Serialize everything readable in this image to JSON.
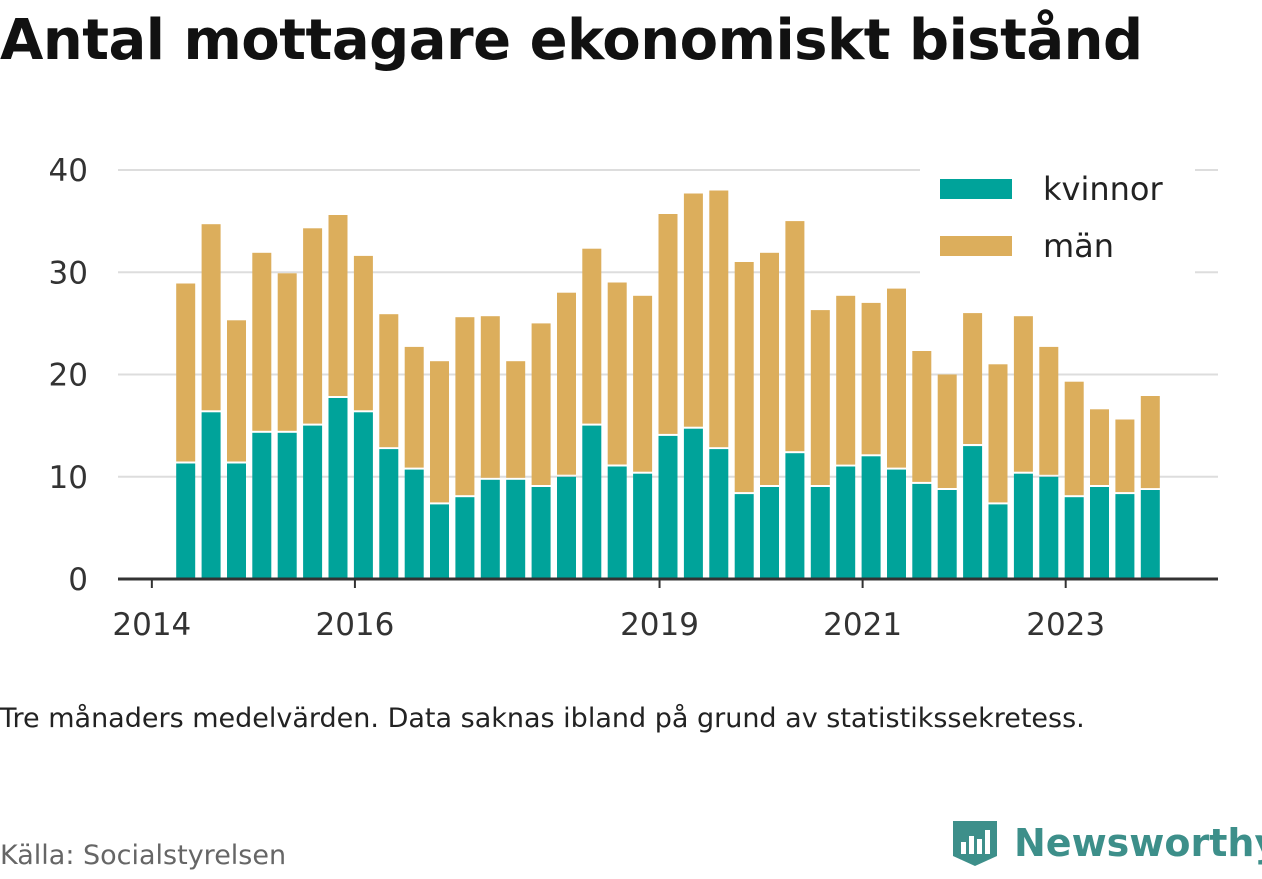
{
  "title": "Antal mottagare ekonomiskt bistånd",
  "note": "Tre månaders medelvärden. Data saknas ibland på grund av statistikssekretess.",
  "source": "Källa: Socialstyrelsen",
  "brand": {
    "name": "Newsworthy",
    "icon": "newsworthy-logo-icon",
    "color": "#3d8f8a"
  },
  "colors": {
    "kvinnor": "#00a39a",
    "man": "#dcae5c",
    "grid": "#dddddd",
    "axis": "#333333"
  },
  "chart_data": {
    "type": "bar",
    "stacked": true,
    "title": "Antal mottagare ekonomiskt bistånd",
    "xlabel": "",
    "ylabel": "",
    "ylim": [
      0,
      40
    ],
    "yticks": [
      0,
      10,
      20,
      30,
      40
    ],
    "xtick_labels": [
      "2014",
      "2016",
      "2019",
      "2021",
      "2023"
    ],
    "xlim": [
      "2013-09",
      "2024-07"
    ],
    "grid": true,
    "legend_position": "top-right",
    "categories": [
      "2014-05",
      "2014-08",
      "2014-11",
      "2015-02",
      "2015-05",
      "2015-08",
      "2015-11",
      "2016-02",
      "2016-05",
      "2016-08",
      "2016-11",
      "2017-02",
      "2017-05",
      "2017-08",
      "2017-11",
      "2018-02",
      "2018-05",
      "2018-08",
      "2018-11",
      "2019-02",
      "2019-05",
      "2019-08",
      "2019-11",
      "2020-02",
      "2020-05",
      "2020-08",
      "2020-11",
      "2021-02",
      "2021-05",
      "2021-08",
      "2021-11",
      "2022-02",
      "2022-05",
      "2022-08",
      "2022-11",
      "2023-02",
      "2023-05",
      "2023-08",
      "2023-11"
    ],
    "series": [
      {
        "name": "kvinnor",
        "values": [
          11.3,
          16.3,
          11.3,
          14.3,
          14.3,
          15.0,
          17.7,
          16.3,
          12.7,
          10.7,
          7.3,
          8.0,
          9.7,
          9.7,
          9.0,
          10.0,
          15.0,
          11.0,
          10.3,
          14.0,
          14.7,
          12.7,
          8.3,
          9.0,
          12.3,
          9.0,
          11.0,
          12.0,
          10.7,
          9.3,
          8.7,
          13.0,
          7.3,
          10.3,
          10.0,
          8.0,
          9.0,
          8.3,
          8.7
        ]
      },
      {
        "name": "män",
        "values": [
          17.6,
          18.4,
          14.0,
          17.6,
          15.6,
          19.3,
          17.9,
          15.3,
          13.2,
          12.0,
          14.0,
          17.6,
          16.0,
          11.6,
          16.0,
          18.0,
          17.3,
          18.0,
          17.4,
          21.7,
          23.0,
          25.3,
          22.7,
          22.9,
          22.7,
          17.3,
          16.7,
          15.0,
          17.7,
          13.0,
          11.3,
          13.0,
          13.7,
          15.4,
          12.7,
          11.3,
          7.6,
          7.3,
          9.2
        ]
      }
    ]
  }
}
